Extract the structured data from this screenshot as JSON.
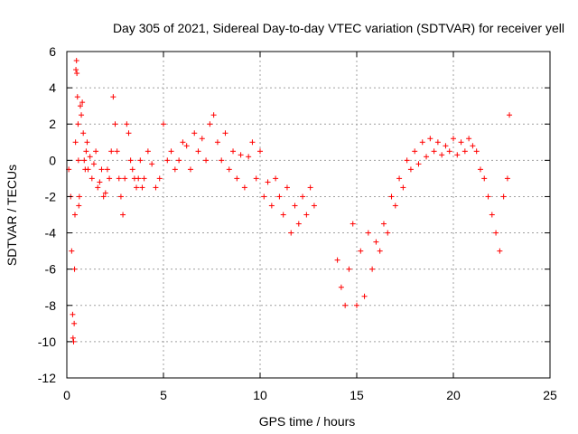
{
  "chart_data": {
    "type": "scatter",
    "title": "Day 305 of 2021, Sidereal Day-to-day VTEC variation (SDTVAR) for receiver yell",
    "xlabel": "GPS time / hours",
    "ylabel": "SDTVAR / TECUs",
    "xlim": [
      0,
      25
    ],
    "ylim": [
      -12,
      6
    ],
    "xticks": [
      0,
      5,
      10,
      15,
      20,
      25
    ],
    "yticks": [
      -12,
      -10,
      -8,
      -6,
      -4,
      -2,
      0,
      2,
      4,
      6
    ],
    "grid": true,
    "marker": "+",
    "color": "#ff0000",
    "series": [
      {
        "name": "SDTVAR",
        "x": [
          0.1,
          0.2,
          0.25,
          0.3,
          0.32,
          0.35,
          0.38,
          0.4,
          0.42,
          0.45,
          0.47,
          0.5,
          0.52,
          0.55,
          0.58,
          0.6,
          0.62,
          0.65,
          0.7,
          0.75,
          0.8,
          0.85,
          0.9,
          0.95,
          1.0,
          1.05,
          1.1,
          1.2,
          1.3,
          1.4,
          1.5,
          1.6,
          1.7,
          1.8,
          1.9,
          2.0,
          2.1,
          2.2,
          2.3,
          2.4,
          2.5,
          2.6,
          2.7,
          2.8,
          2.9,
          3.0,
          3.1,
          3.2,
          3.3,
          3.4,
          3.5,
          3.6,
          3.7,
          3.8,
          3.9,
          4.0,
          4.2,
          4.4,
          4.6,
          4.8,
          5.0,
          5.2,
          5.4,
          5.6,
          5.8,
          6.0,
          6.2,
          6.4,
          6.6,
          6.8,
          7.0,
          7.2,
          7.4,
          7.6,
          7.8,
          8.0,
          8.2,
          8.4,
          8.6,
          8.8,
          9.0,
          9.2,
          9.4,
          9.6,
          9.8,
          10.0,
          10.2,
          10.4,
          10.6,
          10.8,
          11.0,
          11.2,
          11.4,
          11.6,
          11.8,
          12.0,
          12.2,
          12.4,
          12.6,
          12.8,
          14.0,
          14.2,
          14.4,
          14.6,
          14.8,
          15.0,
          15.2,
          15.4,
          15.6,
          15.8,
          16.0,
          16.2,
          16.4,
          16.6,
          16.8,
          17.0,
          17.2,
          17.4,
          17.6,
          17.8,
          18.0,
          18.2,
          18.4,
          18.6,
          18.8,
          19.0,
          19.2,
          19.4,
          19.6,
          19.8,
          20.0,
          20.2,
          20.4,
          20.6,
          20.8,
          21.0,
          21.2,
          21.4,
          21.6,
          21.8,
          22.0,
          22.2,
          22.4,
          22.6,
          22.8,
          22.9
        ],
        "y": [
          -0.5,
          -2,
          -5,
          -8.5,
          -9.8,
          -10,
          -9,
          -6,
          -3,
          1,
          5,
          5.5,
          4.8,
          3.5,
          2,
          0,
          -2.5,
          -2,
          3,
          2.5,
          3.2,
          1.5,
          0,
          -0.5,
          0.5,
          1,
          -0.5,
          0.2,
          -1,
          -0.2,
          0.5,
          -1.5,
          -1.2,
          -0.5,
          -2,
          -1.8,
          -0.5,
          -1,
          0.5,
          3.5,
          2,
          0.5,
          -1,
          -2,
          -3,
          -1,
          2,
          1.5,
          0,
          -0.5,
          -1,
          -1.5,
          -1,
          0,
          -1.5,
          -1,
          0.5,
          -0.2,
          -1.5,
          -1,
          2,
          0,
          0.5,
          -0.5,
          0,
          1,
          0.8,
          -0.5,
          1.5,
          0.5,
          1.2,
          0,
          2,
          2.5,
          1,
          0,
          1.5,
          -0.5,
          0.5,
          -1,
          0.3,
          -1.5,
          0.2,
          1,
          -1,
          0.5,
          -2,
          -1.2,
          -2.5,
          -1,
          -2,
          -3,
          -1.5,
          -4,
          -2.5,
          -3.5,
          -2,
          -3,
          -1.5,
          -2.5,
          -5.5,
          -7,
          -8,
          -6,
          -3.5,
          -8,
          -5,
          -7.5,
          -4,
          -6,
          -4.5,
          -5,
          -3.5,
          -4,
          -2,
          -2.5,
          -1,
          -1.5,
          0,
          -0.5,
          0.5,
          -0.2,
          1,
          0.2,
          1.2,
          0.5,
          1,
          0.3,
          0.8,
          0.5,
          1.2,
          0.3,
          1,
          0.5,
          1.2,
          0.8,
          0.5,
          -0.5,
          -1,
          -2,
          -3,
          -4,
          -5,
          -2,
          -1,
          2.5
        ]
      }
    ]
  }
}
